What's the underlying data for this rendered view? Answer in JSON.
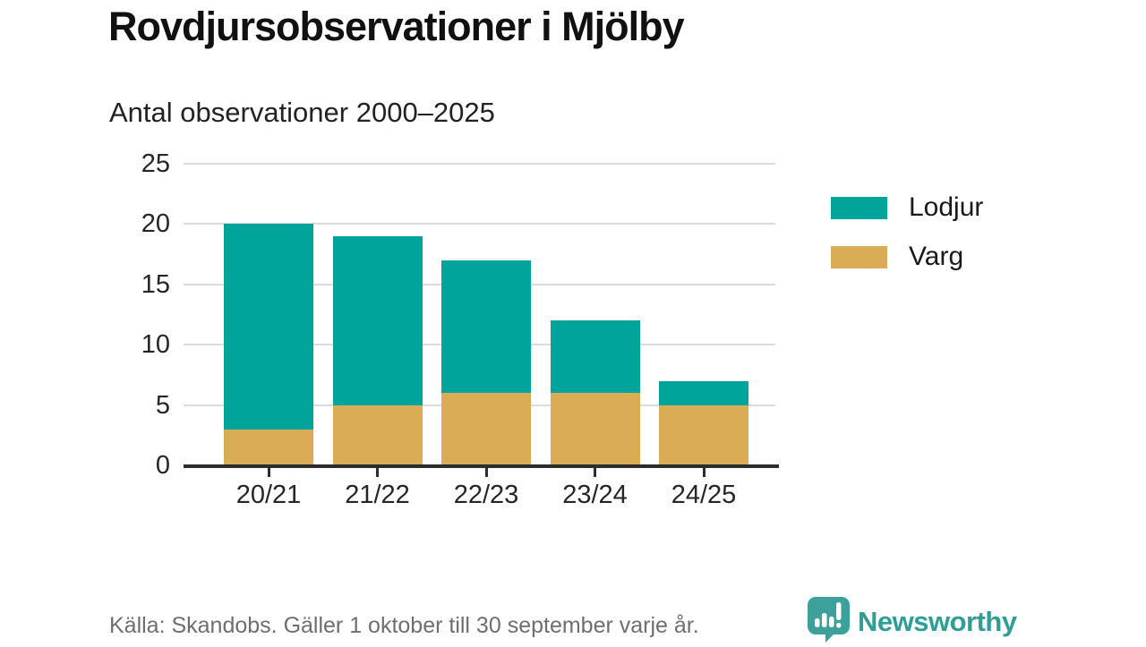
{
  "header": {
    "title": "Rovdjursobservationer i Mjölby",
    "subtitle": "Antal observationer 2000–2025"
  },
  "chart_data": {
    "type": "bar",
    "stacked": true,
    "title": "Rovdjursobservationer i Mjölby",
    "subtitle": "Antal observationer 2000–2025",
    "categories": [
      "20/21",
      "21/22",
      "22/23",
      "23/24",
      "24/25"
    ],
    "series": [
      {
        "name": "Lodjur",
        "color": "#00a49a",
        "values": [
          17,
          14,
          11,
          6,
          2
        ]
      },
      {
        "name": "Varg",
        "color": "#d9ac55",
        "values": [
          3,
          5,
          6,
          6,
          5
        ]
      }
    ],
    "stack_order_bottom_to_top": [
      "Varg",
      "Lodjur"
    ],
    "totals": [
      20,
      19,
      17,
      12,
      7
    ],
    "xlabel": "",
    "ylabel": "",
    "ylim": [
      0,
      25
    ],
    "yticks": [
      0,
      5,
      10,
      15,
      20,
      25
    ],
    "grid": true,
    "legend_position": "right"
  },
  "footer": {
    "source": "Källa: Skandobs. Gäller 1 oktober till 30 september varje år.",
    "brand": "Newsworthy"
  },
  "colors": {
    "lodjur": "#00a49a",
    "varg": "#d9ac55",
    "gridline": "#dcdcdc",
    "axis": "#2d2d2d",
    "text_dark": "#111111",
    "text_muted": "#6e6e6e",
    "brand_teal": "#2f9e96",
    "logo_bubble": "#3da09a"
  }
}
